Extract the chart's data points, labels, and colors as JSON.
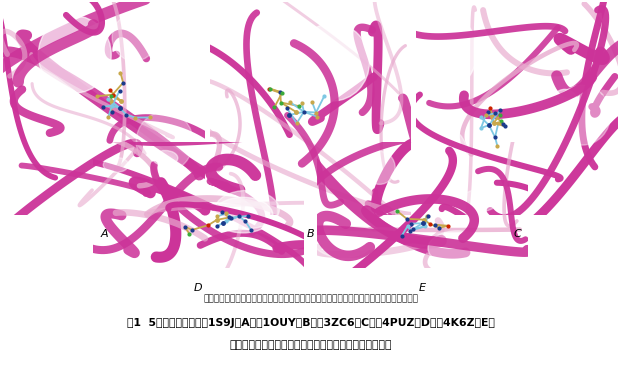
{
  "figure_width": 6.21,
  "figure_height": 3.7,
  "dpi": 100,
  "background_color": "#ffffff",
  "panels": [
    {
      "label": "A",
      "idx": 0
    },
    {
      "label": "B",
      "idx": 1
    },
    {
      "label": "C",
      "idx": 2
    },
    {
      "label": "D",
      "idx": 3
    },
    {
      "label": "E",
      "idx": 4
    }
  ],
  "note_text": "注：图中粉色为靶点蛋白（飘带模型），金色为原始配体分子，浅蓝色为对接后的配体分子",
  "caption_line1": "图1  5个靶点蛋白复合物1S9J（A）、1OUY（B）、3ZC6（C）、4PUZ（D）、4K6Z（E）",
  "caption_line2": "原始晶体结构中配体的构象与对接后配体的构象叠合对比",
  "note_fontsize": 6.5,
  "caption_fontsize": 7.8,
  "label_fontsize": 8,
  "pink_dark": "#cc3399",
  "pink_light": "#e8aace",
  "pink_mid": "#dd66bb",
  "white_bg": "#ffffff",
  "gold": "#c8a84b",
  "light_blue": "#7ec8e3",
  "dark_blue": "#1a3a8c",
  "green": "#3aaa3a",
  "red": "#cc2200",
  "black": "#111111"
}
